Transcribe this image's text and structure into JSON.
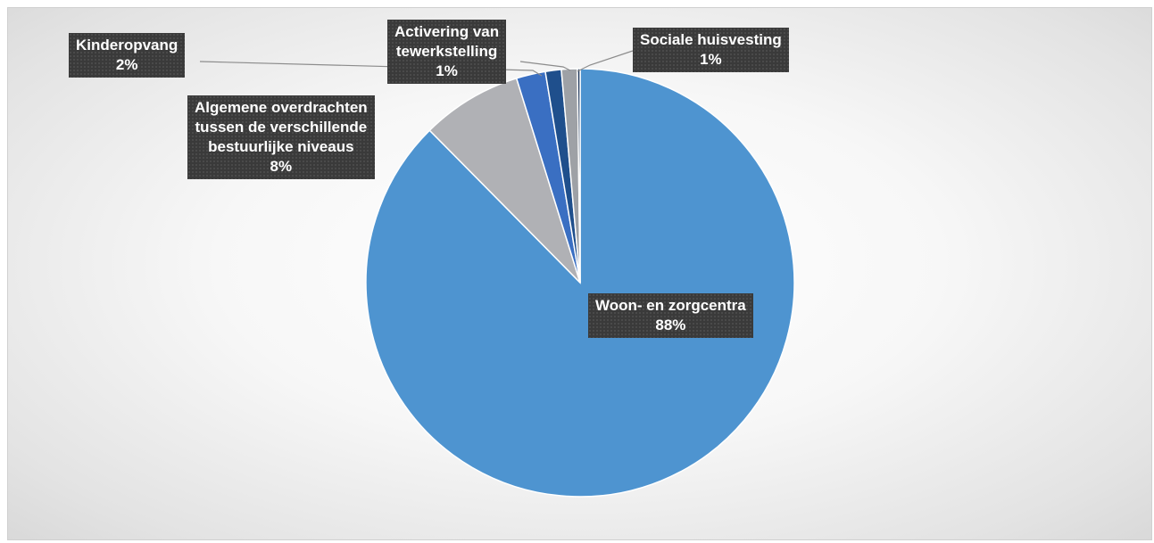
{
  "chart_data": {
    "type": "pie",
    "title": "",
    "start_angle_deg": 0,
    "direction": "clockwise",
    "slices": [
      {
        "name": "Woon- en zorgcentra",
        "value": 87.6,
        "percent_label": "88%",
        "color": "#4e94d0"
      },
      {
        "name": "Algemene overdrachten tussen de verschillende bestuurlijke niveaus",
        "value": 7.6,
        "percent_label": "8%",
        "color": "#b0b1b5"
      },
      {
        "name": "Kinderopvang",
        "value": 2.2,
        "percent_label": "2%",
        "color": "#3a6fc2"
      },
      {
        "name": "Activering van tewerkstelling",
        "value": 1.2,
        "percent_label": "1%",
        "color": "#1f4f8c"
      },
      {
        "name": "Sociale huisvesting",
        "value": 1.2,
        "percent_label": "1%",
        "color": "#9ea1a6"
      },
      {
        "name": "",
        "value": 0.2,
        "percent_label": "",
        "color": "#1b3357"
      }
    ],
    "labels": {
      "woon": {
        "lines": [
          "Woon- en zorgcentra",
          "88%"
        ]
      },
      "algemene": {
        "lines": [
          "Algemene overdrachten",
          "tussen de verschillende",
          "bestuurlijke niveaus",
          "8%"
        ]
      },
      "kinderopvang": {
        "lines": [
          "Kinderopvang",
          "2%"
        ]
      },
      "activering": {
        "lines": [
          "Activering van",
          "tewerkstelling",
          "1%"
        ]
      },
      "sociale": {
        "lines": [
          "Sociale huisvesting",
          "1%"
        ]
      }
    }
  }
}
